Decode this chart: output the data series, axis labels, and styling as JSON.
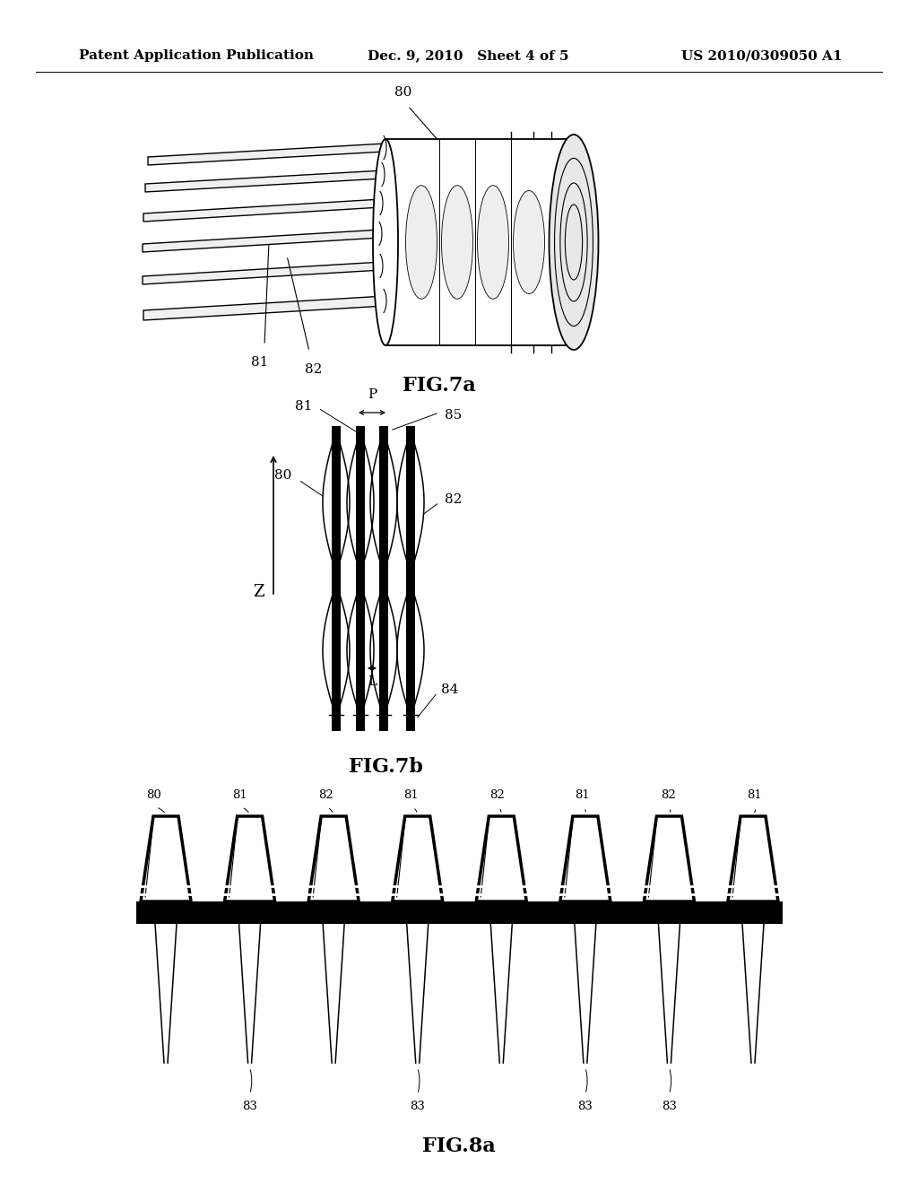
{
  "background_color": "#ffffff",
  "header_left": "Patent Application Publication",
  "header_center": "Dec. 9, 2010   Sheet 4 of 5",
  "header_right": "US 2010/0309050 A1",
  "header_fontsize": 11,
  "fig7a_label": "FIG.7a",
  "fig7b_label": "FIG.7b",
  "fig8a_label": "FIG.8a",
  "label_fontsize": 16,
  "annotation_fontsize": 11
}
